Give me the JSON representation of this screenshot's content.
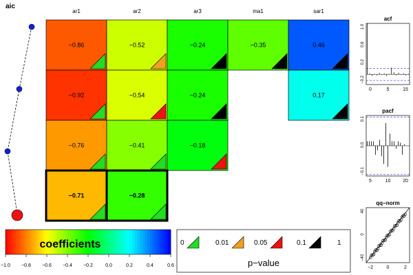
{
  "aic_label": "aic",
  "chart_data": {
    "type": "heatmap",
    "title": "",
    "columns": [
      "ar1",
      "ar2",
      "ar3",
      "ma1",
      "sar1"
    ],
    "rows": [
      {
        "aic_rank": 4,
        "cells": [
          {
            "col": "ar1",
            "value": -0.86,
            "label": "−0.86",
            "pclass": "0"
          },
          {
            "col": "ar2",
            "value": -0.52,
            "label": "−0.52",
            "pclass": "0.01"
          },
          {
            "col": "ar3",
            "value": -0.24,
            "label": "−0.24",
            "pclass": "0.1"
          },
          {
            "col": "ma1",
            "value": -0.35,
            "label": "−0.35",
            "pclass": "0.1"
          },
          {
            "col": "sar1",
            "value": 0.46,
            "label": "0.46",
            "pclass": "0.1"
          }
        ]
      },
      {
        "aic_rank": 3,
        "cells": [
          {
            "col": "ar1",
            "value": -0.92,
            "label": "−0.92",
            "pclass": "0"
          },
          {
            "col": "ar2",
            "value": -0.54,
            "label": "−0.54",
            "pclass": "0.05"
          },
          {
            "col": "ar3",
            "value": -0.24,
            "label": "−0.24",
            "pclass": "0.1"
          },
          {
            "col": "sar1",
            "value": 0.17,
            "label": "0.17",
            "pclass": "0.1"
          }
        ]
      },
      {
        "aic_rank": 2,
        "cells": [
          {
            "col": "ar1",
            "value": -0.76,
            "label": "−0.76",
            "pclass": "0"
          },
          {
            "col": "ar2",
            "value": -0.41,
            "label": "−0.41",
            "pclass": "0"
          },
          {
            "col": "ar3",
            "value": -0.18,
            "label": "−0.18",
            "pclass": "0.05"
          }
        ]
      },
      {
        "aic_rank": 1,
        "best": true,
        "cells": [
          {
            "col": "ar1",
            "value": -0.71,
            "label": "−0.71",
            "pclass": "0"
          },
          {
            "col": "ar2",
            "value": -0.28,
            "label": "−0.28",
            "pclass": "0"
          }
        ]
      }
    ],
    "colorbar": {
      "title": "coefficients",
      "range": [
        -1.0,
        0.6
      ],
      "ticks": [
        "−1.0",
        "−0.8",
        "−0.6",
        "−0.4",
        "−0.2",
        "0.0",
        "0.2",
        "0.4",
        "0.6"
      ]
    },
    "pvalue_legend": {
      "title": "p−value",
      "breaks": [
        "0",
        "0.01",
        "0.05",
        "0.1",
        "1"
      ],
      "colors": [
        "#22dd22",
        "#f0a020",
        "#ee1111",
        "#000000"
      ]
    },
    "acf": {
      "title": "acf",
      "y_ticks": [
        "1.0",
        "0.6",
        "0.2",
        "−0.2"
      ],
      "x_ticks": [
        "0",
        "5",
        "15"
      ],
      "ylim": [
        -0.2,
        1.0
      ],
      "xlim": [
        0,
        18
      ],
      "conf": 0.12,
      "values": [
        1.0,
        0.02,
        -0.03,
        0.01,
        -0.02,
        0.03,
        -0.01,
        0.02,
        -0.03,
        0.01,
        0.13,
        0.04,
        -0.02,
        0.03,
        -0.01,
        0.02,
        -0.02,
        0.01
      ]
    },
    "pacf": {
      "title": "pacf",
      "y_ticks": [
        "0.1",
        "0.0",
        "−0.1"
      ],
      "x_ticks": [
        "5",
        "10",
        "20"
      ],
      "ylim": [
        -0.2,
        0.2
      ],
      "xlim": [
        0,
        21
      ],
      "conf": 0.19,
      "values": [
        0.03,
        0.03,
        0.03,
        0.03,
        -0.06,
        -0.03,
        0.04,
        -0.07,
        -0.12,
        0.15,
        -0.14,
        0.08,
        0.03,
        0.03,
        -0.02,
        0.03,
        0.02,
        -0.06,
        0.01,
        0.0
      ]
    },
    "qqnorm": {
      "title": "qq−norm",
      "y_ticks": [
        "40",
        "0",
        "−40"
      ],
      "x_ticks": [
        "−2",
        "0",
        "2"
      ],
      "xlim": [
        -3,
        3
      ],
      "ylim": [
        -48,
        58
      ]
    }
  }
}
